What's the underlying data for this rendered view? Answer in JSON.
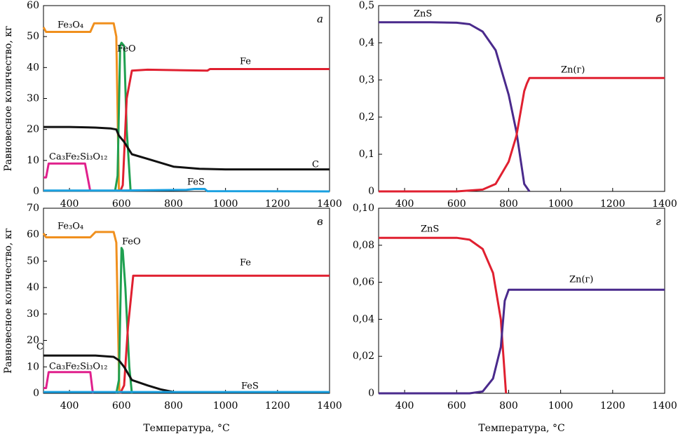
{
  "chart_data": [
    {
      "type": "line",
      "panel_label": "а",
      "ylabel": "Равновесное количество, кг",
      "xlim": [
        300,
        1400
      ],
      "xticks": [
        400,
        600,
        800,
        1000,
        1200,
        1400
      ],
      "ylim": [
        0,
        60
      ],
      "yticks": [
        0,
        10,
        20,
        30,
        40,
        50,
        60
      ],
      "series": [
        {
          "name": "Fe₃O₄",
          "color": "#f0901e",
          "x": [
            300,
            310,
            480,
            495,
            570,
            580,
            590
          ],
          "values": [
            53,
            51.5,
            51.5,
            54.3,
            54.3,
            50,
            0
          ]
        },
        {
          "name": "FeO",
          "color": "#1fa050",
          "x": [
            575,
            585,
            595,
            600,
            610,
            620,
            635
          ],
          "values": [
            0,
            5,
            47,
            48,
            47,
            20,
            0
          ]
        },
        {
          "name": "Fe",
          "color": "#e02030",
          "x": [
            595,
            605,
            620,
            640,
            700,
            930,
            940,
            1400
          ],
          "values": [
            0,
            2,
            30,
            39,
            39.3,
            39,
            39.5,
            39.5
          ]
        },
        {
          "name": "C",
          "color": "#111111",
          "x": [
            300,
            400,
            500,
            560,
            580,
            590,
            610,
            640,
            700,
            800,
            900,
            1000,
            1400
          ],
          "values": [
            20.8,
            20.8,
            20.6,
            20.3,
            20,
            18,
            16,
            12,
            10.5,
            8,
            7.3,
            7.1,
            7.1
          ]
        },
        {
          "name": "Ca₃Fe₂Si₃O₁₂",
          "color": "#e0208c",
          "x": [
            300,
            310,
            320,
            460,
            480
          ],
          "values": [
            4.5,
            4.5,
            9,
            9,
            0
          ]
        },
        {
          "name": "FeS",
          "color": "#1aa0e0",
          "x": [
            300,
            600,
            850,
            880,
            920,
            930,
            1400
          ],
          "values": [
            0.3,
            0.3,
            0.5,
            0.8,
            0.8,
            0.1,
            0
          ]
        }
      ]
    },
    {
      "type": "line",
      "panel_label": "б",
      "xlim": [
        300,
        1400
      ],
      "xticks": [
        400,
        600,
        800,
        1000,
        1200,
        1400
      ],
      "ylim": [
        0,
        0.5
      ],
      "yticks": [
        0,
        {
          "value": 0.1,
          "label": "0,1"
        },
        {
          "value": 0.2,
          "label": "0,2"
        },
        {
          "value": 0.3,
          "label": "0,3"
        },
        {
          "value": 0.4,
          "label": "0,4"
        },
        {
          "value": 0.5,
          "label": "0,5"
        }
      ],
      "series": [
        {
          "name": "ZnS",
          "color": "#4a2a8c",
          "x": [
            300,
            500,
            600,
            650,
            700,
            750,
            800,
            830,
            860,
            880
          ],
          "values": [
            0.455,
            0.455,
            0.454,
            0.45,
            0.43,
            0.38,
            0.26,
            0.16,
            0.02,
            0
          ]
        },
        {
          "name": "Zn(г)",
          "color": "#e02030",
          "x": [
            300,
            600,
            700,
            750,
            800,
            830,
            860,
            870,
            880,
            1400
          ],
          "values": [
            0,
            0,
            0.005,
            0.02,
            0.08,
            0.15,
            0.27,
            0.29,
            0.305,
            0.305
          ]
        }
      ]
    },
    {
      "type": "line",
      "panel_label": "в",
      "ylabel": "Равновесное количество, кг",
      "xlabel": "Температура, °C",
      "xlim": [
        300,
        1400
      ],
      "xticks": [
        400,
        600,
        800,
        1000,
        1200,
        1400
      ],
      "ylim": [
        0,
        70
      ],
      "yticks": [
        0,
        10,
        20,
        30,
        40,
        50,
        60,
        70
      ],
      "series": [
        {
          "name": "Fe₃O₄",
          "color": "#f0901e",
          "x": [
            300,
            310,
            320,
            480,
            500,
            570,
            580,
            592
          ],
          "values": [
            60.5,
            59,
            59,
            59,
            61,
            61,
            57,
            0
          ]
        },
        {
          "name": "FeO",
          "color": "#1fa050",
          "x": [
            580,
            590,
            600,
            605,
            615,
            630,
            640
          ],
          "values": [
            0,
            5,
            55,
            54,
            40,
            10,
            0
          ]
        },
        {
          "name": "Fe",
          "color": "#e02030",
          "x": [
            595,
            610,
            625,
            645,
            1400
          ],
          "values": [
            0,
            3,
            25,
            44.5,
            44.5
          ]
        },
        {
          "name": "C",
          "color": "#111111",
          "x": [
            300,
            500,
            570,
            590,
            610,
            640,
            700,
            750,
            800
          ],
          "values": [
            14.3,
            14.3,
            13.8,
            12.5,
            10,
            5,
            3,
            1.5,
            0.5
          ]
        },
        {
          "name": "Ca₃Fe₂Si₃O₁₂",
          "color": "#e0208c",
          "x": [
            300,
            310,
            320,
            480,
            490
          ],
          "values": [
            2,
            2,
            8,
            8,
            0
          ]
        },
        {
          "name": "FeS",
          "color": "#1aa0e0",
          "x": [
            300,
            1400
          ],
          "values": [
            0.5,
            0.5
          ]
        }
      ]
    },
    {
      "type": "line",
      "panel_label": "г",
      "xlabel": "Температура, °C",
      "xlim": [
        300,
        1400
      ],
      "xticks": [
        400,
        600,
        800,
        1000,
        1200,
        1400
      ],
      "ylim": [
        0,
        0.1
      ],
      "yticks": [
        0,
        {
          "value": 0.02,
          "label": "0,02"
        },
        {
          "value": 0.04,
          "label": "0,04"
        },
        {
          "value": 0.06,
          "label": "0,06"
        },
        {
          "value": 0.08,
          "label": "0,08"
        },
        {
          "value": 0.1,
          "label": "0,10"
        }
      ],
      "series": [
        {
          "name": "ZnS",
          "color": "#e02030",
          "x": [
            300,
            600,
            650,
            700,
            740,
            770,
            790
          ],
          "values": [
            0.084,
            0.084,
            0.083,
            0.078,
            0.065,
            0.04,
            0
          ]
        },
        {
          "name": "Zn(г)",
          "color": "#4a2a8c",
          "x": [
            300,
            650,
            700,
            740,
            770,
            785,
            800,
            1400
          ],
          "values": [
            0,
            0,
            0.001,
            0.008,
            0.025,
            0.05,
            0.056,
            0.056
          ]
        }
      ]
    }
  ]
}
